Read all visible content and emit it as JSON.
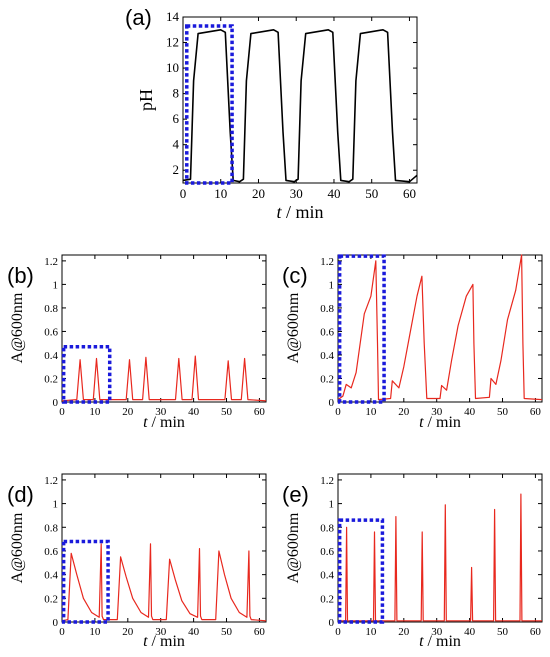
{
  "chart_data": [
    {
      "panel": "(a)",
      "type": "line",
      "xlabel_italic": "t",
      "xlabel_rest": " / min",
      "ylabel": "pH",
      "xlim": [
        0,
        62
      ],
      "ylim": [
        1,
        14
      ],
      "xticks": [
        0,
        10,
        20,
        30,
        40,
        50,
        60
      ],
      "yticks": [
        2,
        4,
        6,
        8,
        10,
        12,
        14
      ],
      "grid": false,
      "line_color": "#000000",
      "highlight_color": "#1a1adb",
      "highlight_box": {
        "x0": 1,
        "x1": 13,
        "y0": 1.0,
        "y1": 13.3
      },
      "series": [
        {
          "x": [
            0,
            2,
            2.8,
            4,
            10,
            11.2,
            12.5,
            13.3,
            15,
            16,
            16.8,
            18,
            24,
            25.2,
            26.5,
            27.3,
            29.5,
            30.5,
            31.3,
            32.5,
            38.5,
            39.7,
            41,
            41.8,
            44,
            45,
            45.8,
            47,
            53,
            54.2,
            55.5,
            56.3,
            60,
            62
          ],
          "y": [
            1.2,
            1.3,
            9,
            12.7,
            13.0,
            12.8,
            5,
            1.2,
            1.1,
            1.3,
            9,
            12.7,
            13.0,
            12.8,
            5,
            1.2,
            1.1,
            1.3,
            9,
            12.7,
            13.0,
            12.8,
            5,
            1.2,
            1.1,
            1.3,
            9,
            12.7,
            13.0,
            12.8,
            5,
            1.2,
            1.1,
            1.6
          ]
        }
      ]
    },
    {
      "panel": "(b)",
      "type": "line",
      "xlabel_italic": "t",
      "xlabel_rest": " / min",
      "ylabel": "A@600nm",
      "xlim": [
        0,
        62
      ],
      "ylim": [
        0,
        1.25
      ],
      "xticks": [
        0,
        10,
        20,
        30,
        40,
        50,
        60
      ],
      "yticks": [
        0,
        0.2,
        0.4,
        0.6,
        0.8,
        1,
        1.2
      ],
      "ytick_labels": [
        "0",
        "0.2",
        "0.4",
        "0.6",
        "0.8",
        "1",
        "1.2"
      ],
      "line_color": "#e8281e",
      "highlight_color": "#1a1adb",
      "highlight_box": {
        "x0": 0.5,
        "x1": 14.5,
        "y0": 0,
        "y1": 0.47
      },
      "series": [
        {
          "x": [
            0,
            4.5,
            5.5,
            6.5,
            9.5,
            10.5,
            11.5,
            19.5,
            20.5,
            21.5,
            24.5,
            25.5,
            26.5,
            34.5,
            35.5,
            36.5,
            39.5,
            40.5,
            41.5,
            49.5,
            50.5,
            51.5,
            54.5,
            55.5,
            56.5,
            62
          ],
          "y": [
            0.01,
            0.02,
            0.36,
            0.02,
            0.02,
            0.37,
            0.02,
            0.02,
            0.36,
            0.02,
            0.02,
            0.38,
            0.02,
            0.02,
            0.37,
            0.02,
            0.02,
            0.39,
            0.02,
            0.02,
            0.35,
            0.02,
            0.02,
            0.37,
            0.02,
            0.01
          ]
        }
      ]
    },
    {
      "panel": "(c)",
      "type": "line",
      "xlabel_italic": "t",
      "xlabel_rest": " / min",
      "ylabel": "A@600nm",
      "xlim": [
        0,
        62
      ],
      "ylim": [
        0,
        1.25
      ],
      "xticks": [
        0,
        10,
        20,
        30,
        40,
        50,
        60
      ],
      "yticks": [
        0,
        0.2,
        0.4,
        0.6,
        0.8,
        1,
        1.2
      ],
      "ytick_labels": [
        "0",
        "0.2",
        "0.4",
        "0.6",
        "0.8",
        "1",
        "1.2"
      ],
      "line_color": "#e8281e",
      "highlight_color": "#1a1adb",
      "highlight_box": {
        "x0": 0.5,
        "x1": 14,
        "y0": 0,
        "y1": 1.24
      },
      "series": [
        {
          "x": [
            0,
            1.5,
            2.5,
            4,
            5.5,
            8,
            10,
            11.5,
            12,
            12.3,
            16,
            16.5,
            18.5,
            20,
            22,
            24,
            25.5,
            26.2,
            27,
            31,
            31.5,
            33,
            34.5,
            36.5,
            39,
            41,
            41.3,
            41.8,
            46,
            46.5,
            48,
            49.5,
            51.5,
            54,
            55.8,
            56.2,
            56.6,
            62
          ],
          "y": [
            0.02,
            0.05,
            0.15,
            0.12,
            0.25,
            0.75,
            0.9,
            1.2,
            0.5,
            0.02,
            0.03,
            0.18,
            0.12,
            0.3,
            0.6,
            0.9,
            1.07,
            0.5,
            0.03,
            0.03,
            0.14,
            0.1,
            0.35,
            0.65,
            0.9,
            1.0,
            0.5,
            0.03,
            0.04,
            0.2,
            0.15,
            0.35,
            0.7,
            0.95,
            1.25,
            0.5,
            0.03,
            0.02
          ]
        }
      ]
    },
    {
      "panel": "(d)",
      "type": "line",
      "xlabel_italic": "t",
      "xlabel_rest": " / min",
      "ylabel": "A@600nm",
      "xlim": [
        0,
        62
      ],
      "ylim": [
        0,
        1.25
      ],
      "xticks": [
        0,
        10,
        20,
        30,
        40,
        50,
        60
      ],
      "yticks": [
        0,
        0.2,
        0.4,
        0.6,
        0.8,
        1,
        1.2
      ],
      "ytick_labels": [
        "0",
        "0.2",
        "0.4",
        "0.6",
        "0.8",
        "1",
        "1.2"
      ],
      "line_color": "#e8281e",
      "highlight_color": "#1a1adb",
      "highlight_box": {
        "x0": 0.5,
        "x1": 14,
        "y0": 0,
        "y1": 0.68
      },
      "series": [
        {
          "x": [
            0,
            1.8,
            2.8,
            4.5,
            6.5,
            9,
            11.3,
            11.9,
            12.2,
            12.6,
            16.8,
            17.8,
            19.5,
            21.5,
            24,
            26.3,
            26.9,
            27.2,
            27.6,
            31.7,
            32.7,
            34.4,
            36.4,
            38.9,
            41.2,
            41.8,
            42.1,
            42.5,
            46.7,
            47.7,
            49.4,
            51.4,
            53.9,
            56.2,
            56.8,
            57.1,
            57.5,
            62
          ],
          "y": [
            0.01,
            0.02,
            0.58,
            0.4,
            0.2,
            0.08,
            0.04,
            0.66,
            0.05,
            0.02,
            0.02,
            0.55,
            0.38,
            0.2,
            0.08,
            0.04,
            0.66,
            0.05,
            0.02,
            0.02,
            0.53,
            0.36,
            0.18,
            0.07,
            0.04,
            0.62,
            0.05,
            0.02,
            0.02,
            0.6,
            0.4,
            0.2,
            0.08,
            0.04,
            0.6,
            0.05,
            0.02,
            0.01
          ]
        }
      ]
    },
    {
      "panel": "(e)",
      "type": "line",
      "xlabel_italic": "t",
      "xlabel_rest": " / min",
      "ylabel": "A@600nm",
      "xlim": [
        0,
        62
      ],
      "ylim": [
        0,
        1.25
      ],
      "xticks": [
        0,
        10,
        20,
        30,
        40,
        50,
        60
      ],
      "yticks": [
        0,
        0.2,
        0.4,
        0.6,
        0.8,
        1,
        1.2
      ],
      "ytick_labels": [
        "0",
        "0.2",
        "0.4",
        "0.6",
        "0.8",
        "1",
        "1.2"
      ],
      "line_color": "#e8281e",
      "highlight_color": "#1a1adb",
      "highlight_box": {
        "x0": 0.5,
        "x1": 13.5,
        "y0": 0,
        "y1": 0.86
      },
      "series": [
        {
          "x": [
            0,
            2.3,
            2.6,
            2.9,
            10.8,
            11.1,
            11.4,
            17.3,
            17.6,
            17.9,
            25.3,
            25.6,
            25.9,
            32.3,
            32.6,
            32.9,
            40.3,
            40.6,
            40.9,
            47.3,
            47.6,
            47.9,
            55.3,
            55.6,
            55.9,
            62
          ],
          "y": [
            0.01,
            0.01,
            0.8,
            0.01,
            0.01,
            0.76,
            0.01,
            0.01,
            0.89,
            0.01,
            0.01,
            0.76,
            0.01,
            0.01,
            0.99,
            0.01,
            0.01,
            0.46,
            0.01,
            0.01,
            0.95,
            0.01,
            0.01,
            1.08,
            0.01,
            0.01
          ]
        }
      ]
    }
  ]
}
